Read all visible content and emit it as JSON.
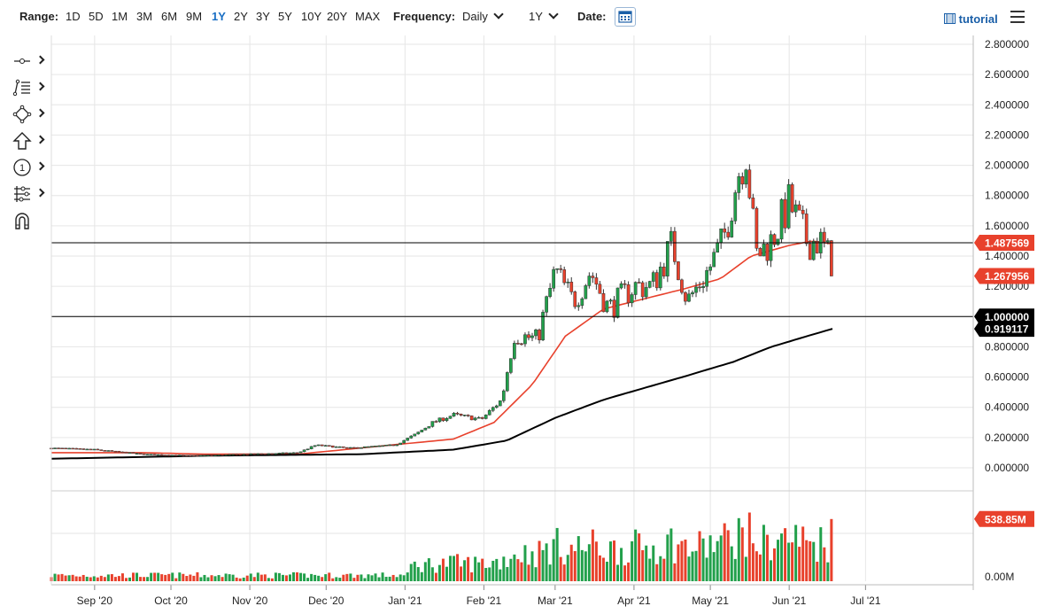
{
  "toolbar": {
    "range_label": "Range:",
    "ranges": [
      {
        "label": "1D",
        "active": false
      },
      {
        "label": "5D",
        "active": false
      },
      {
        "label": "1M",
        "active": false
      },
      {
        "label": "3M",
        "active": false
      },
      {
        "label": "6M",
        "active": false
      },
      {
        "label": "9M",
        "active": false
      },
      {
        "label": "1Y",
        "active": true
      },
      {
        "label": "2Y",
        "active": false
      },
      {
        "label": "3Y",
        "active": false
      },
      {
        "label": "5Y",
        "active": false
      },
      {
        "label": "10Y",
        "active": false
      },
      {
        "label": "20Y",
        "active": false
      },
      {
        "label": "MAX",
        "active": false
      }
    ],
    "frequency_label": "Frequency:",
    "frequency_value": "Daily",
    "period_value": "1Y",
    "date_label": "Date:",
    "calendar_icon": "calendar-icon",
    "tutorial_label": "tutorial",
    "tutorial_icon": "film-icon",
    "menu_icon": "hamburger-menu-icon"
  },
  "side_tools": [
    "line-tool-icon",
    "fibonacci-tool-icon",
    "shape-tool-icon",
    "arrow-up-tool-icon",
    "numbered-marker-tool-icon",
    "settings-tool-icon",
    "magnet-icon"
  ],
  "colors": {
    "up": "#22a04b",
    "down": "#e8412c",
    "ma_short": "#e8412c",
    "ma_long": "#000000",
    "grid": "#e6e6e6",
    "last_price": "#e8412c"
  },
  "chart_data": {
    "type": "candlestick",
    "x_ticks": [
      "Sep '20",
      "Oct '20",
      "Nov '20",
      "Dec '20",
      "Jan '21",
      "Feb '21",
      "Mar '21",
      "Apr '21",
      "May '21",
      "Jun '21",
      "Jul '21"
    ],
    "y_ticks": [
      "2.800000",
      "2.600000",
      "2.400000",
      "2.200000",
      "2.000000",
      "1.800000",
      "1.600000",
      "1.400000",
      "1.200000",
      "1.000000",
      "0.800000",
      "0.600000",
      "0.400000",
      "0.200000",
      "0.000000"
    ],
    "ylim": [
      0,
      2.8
    ],
    "volume_ticks": [
      "0.00M"
    ],
    "horizontal_lines": [
      {
        "value": 1.487569,
        "label": "1.487569",
        "style": "red-label"
      },
      {
        "value": 1.0,
        "label": "1.000000",
        "style": "black-label"
      }
    ],
    "price_labels": [
      {
        "value": 1.267956,
        "label": "1.267956",
        "style": "red-label"
      },
      {
        "value": 0.919117,
        "label": "0.919117",
        "style": "black-label"
      }
    ],
    "volume_label": "538.85M",
    "volume_max_millions": 760,
    "anchors": [
      [
        "2020-08-15",
        0.13
      ],
      [
        "2020-09-01",
        0.12
      ],
      [
        "2020-09-20",
        0.09
      ],
      [
        "2020-10-10",
        0.08
      ],
      [
        "2020-10-31",
        0.09
      ],
      [
        "2020-11-20",
        0.1
      ],
      [
        "2020-11-27",
        0.15
      ],
      [
        "2020-12-10",
        0.13
      ],
      [
        "2020-12-28",
        0.15
      ],
      [
        "2021-01-05",
        0.22
      ],
      [
        "2021-01-12",
        0.3
      ],
      [
        "2021-01-20",
        0.35
      ],
      [
        "2021-01-31",
        0.32
      ],
      [
        "2021-02-08",
        0.45
      ],
      [
        "2021-02-13",
        0.88
      ],
      [
        "2021-02-22",
        0.85
      ],
      [
        "2021-03-01",
        1.3
      ],
      [
        "2021-03-08",
        1.1
      ],
      [
        "2021-03-15",
        1.3
      ],
      [
        "2021-03-22",
        1.05
      ],
      [
        "2021-04-01",
        1.2
      ],
      [
        "2021-04-08",
        1.2
      ],
      [
        "2021-04-16",
        1.48
      ],
      [
        "2021-04-22",
        1.1
      ],
      [
        "2021-04-30",
        1.3
      ],
      [
        "2021-05-06",
        1.5
      ],
      [
        "2021-05-12",
        1.95
      ],
      [
        "2021-05-15",
        2.1
      ],
      [
        "2021-05-19",
        1.4
      ],
      [
        "2021-05-25",
        1.5
      ],
      [
        "2021-06-01",
        1.75
      ],
      [
        "2021-06-08",
        1.5
      ],
      [
        "2021-06-13",
        1.5
      ],
      [
        "2021-06-16",
        1.42
      ],
      [
        "2021-06-18",
        1.27
      ]
    ],
    "ma50_anchors": [
      [
        "2020-08-15",
        0.1
      ],
      [
        "2020-09-20",
        0.1
      ],
      [
        "2020-10-15",
        0.09
      ],
      [
        "2020-11-20",
        0.09
      ],
      [
        "2020-12-20",
        0.14
      ],
      [
        "2021-01-20",
        0.19
      ],
      [
        "2021-02-05",
        0.3
      ],
      [
        "2021-02-20",
        0.55
      ],
      [
        "2021-03-05",
        0.87
      ],
      [
        "2021-03-20",
        1.05
      ],
      [
        "2021-04-20",
        1.18
      ],
      [
        "2021-05-05",
        1.25
      ],
      [
        "2021-05-17",
        1.4
      ],
      [
        "2021-06-01",
        1.47
      ],
      [
        "2021-06-10",
        1.5
      ],
      [
        "2021-06-18",
        1.48
      ]
    ],
    "ma200_anchors": [
      [
        "2020-08-15",
        0.06
      ],
      [
        "2020-10-15",
        0.08
      ],
      [
        "2020-12-15",
        0.09
      ],
      [
        "2021-01-20",
        0.12
      ],
      [
        "2021-02-10",
        0.18
      ],
      [
        "2021-03-01",
        0.33
      ],
      [
        "2021-03-20",
        0.45
      ],
      [
        "2021-04-20",
        0.6
      ],
      [
        "2021-05-10",
        0.7
      ],
      [
        "2021-05-25",
        0.8
      ],
      [
        "2021-06-10",
        0.88
      ],
      [
        "2021-06-18",
        0.919117
      ]
    ]
  }
}
